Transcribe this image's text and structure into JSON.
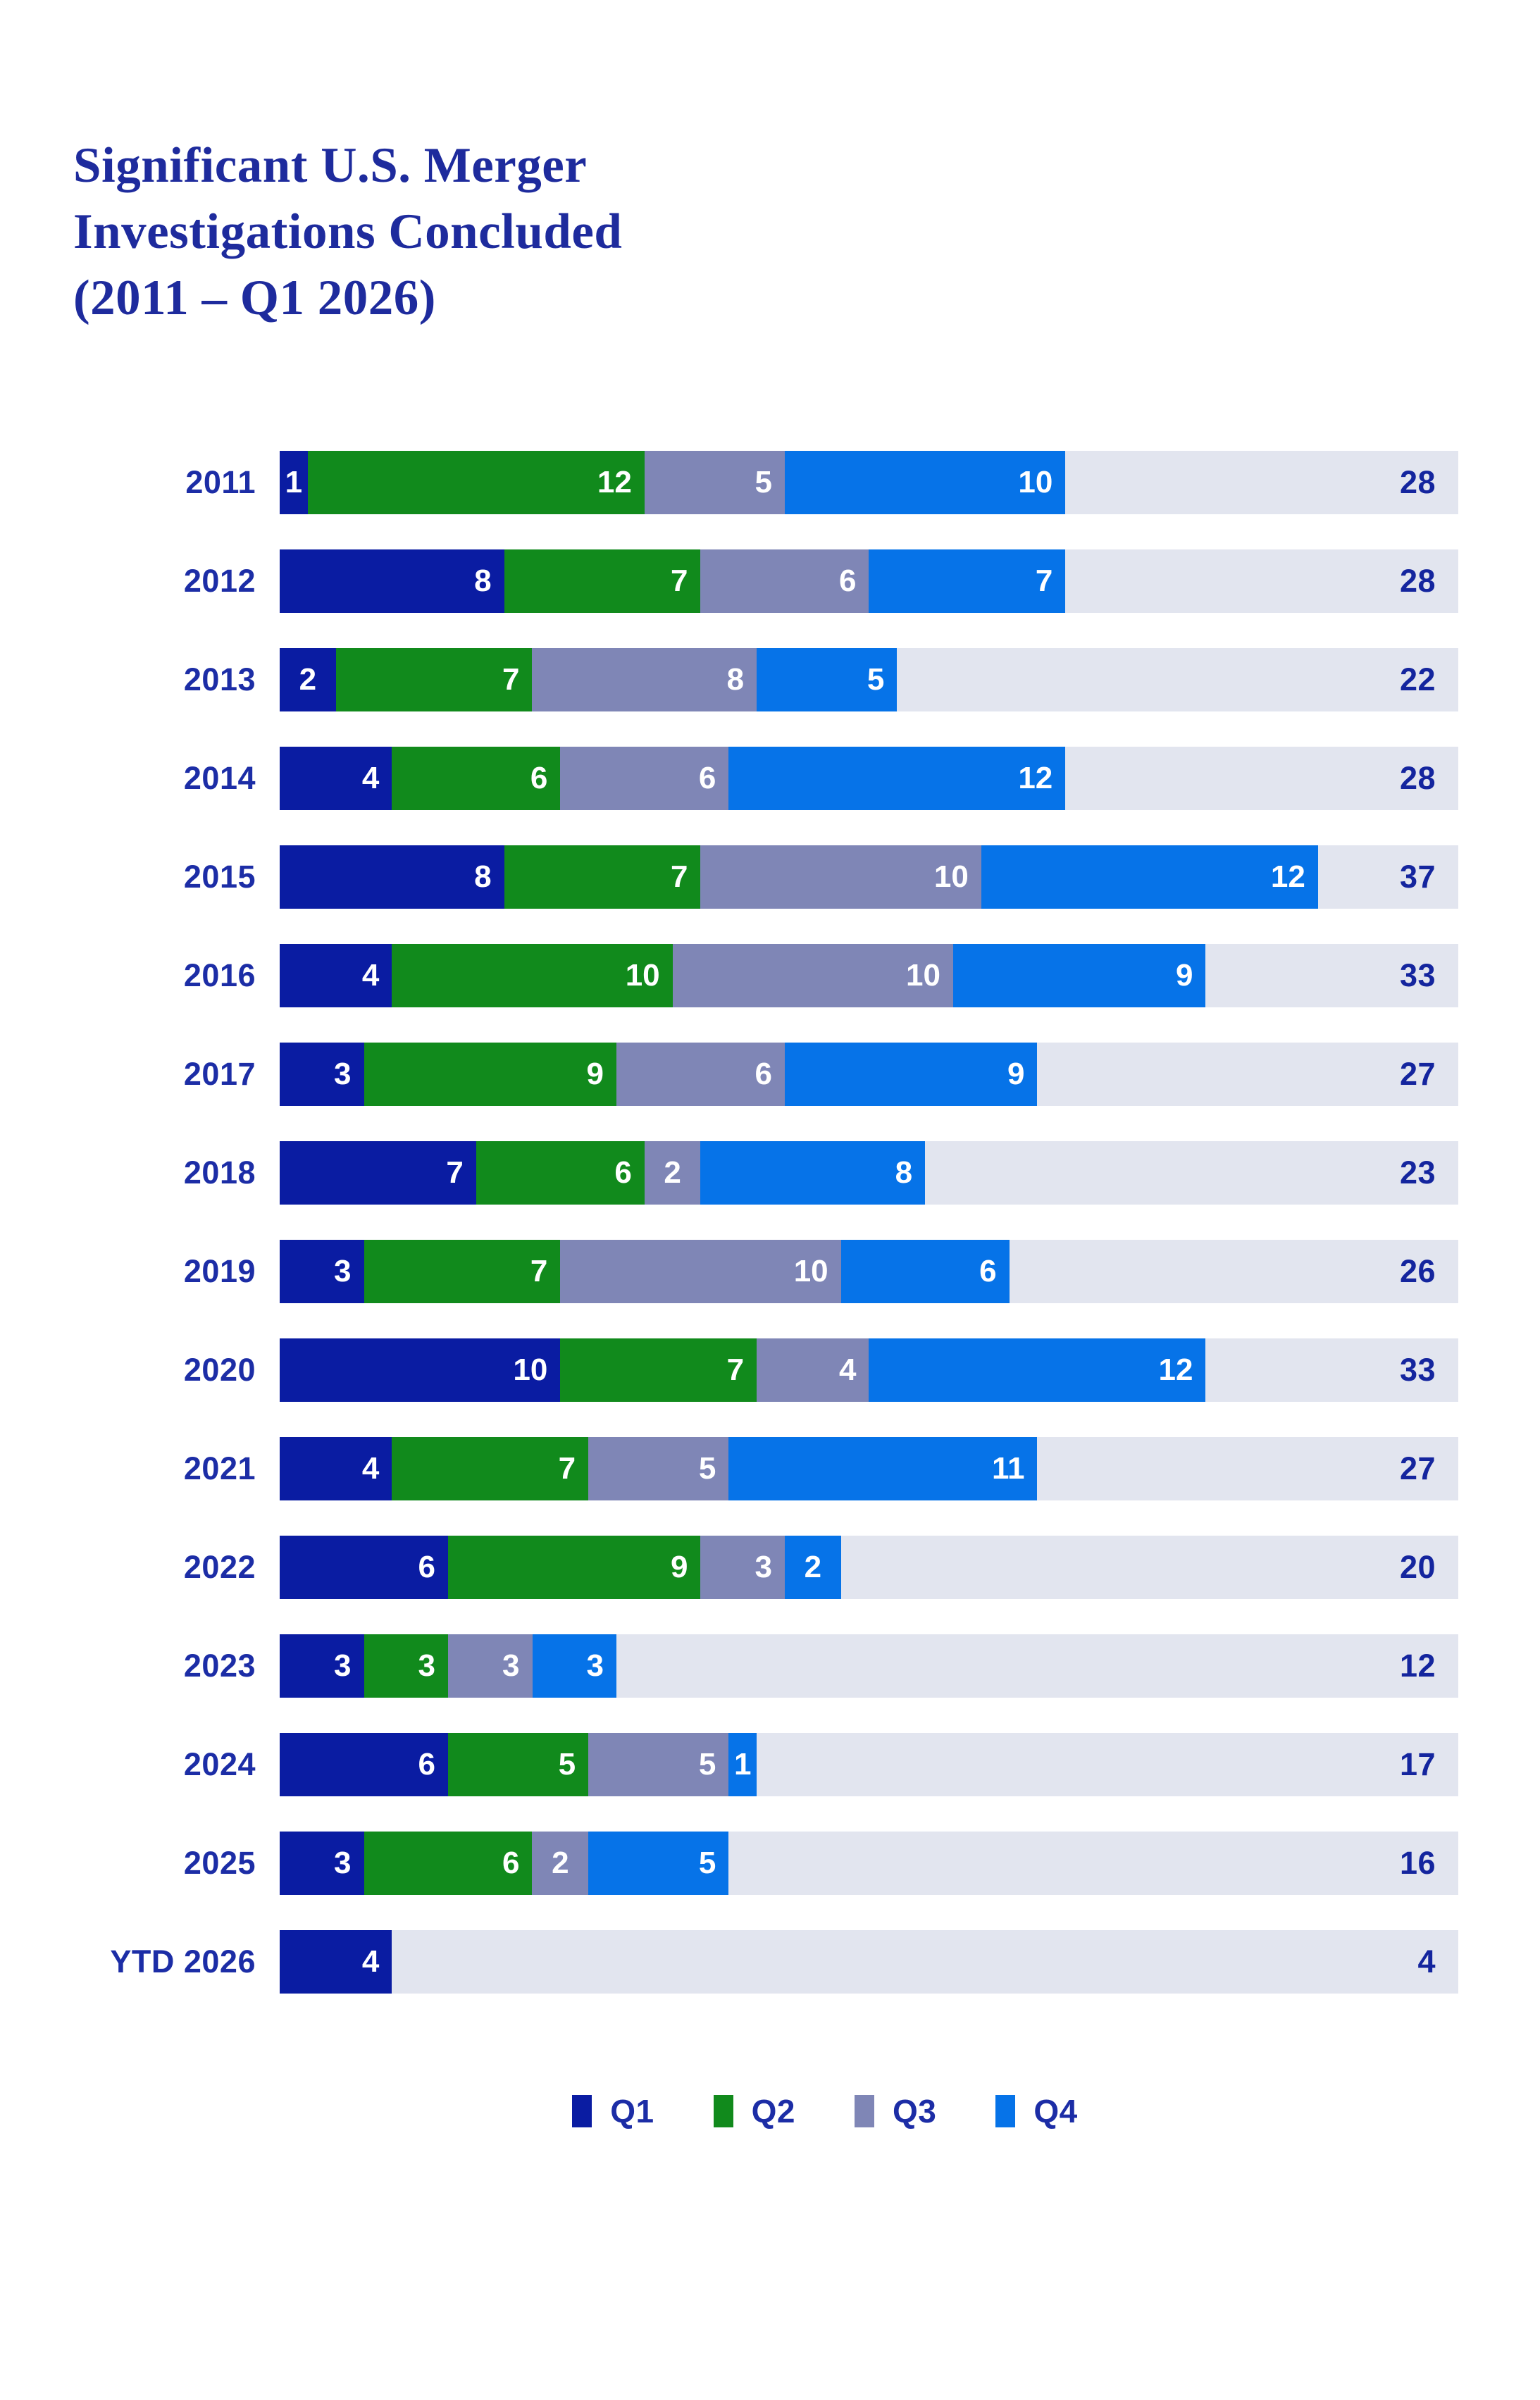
{
  "title": {
    "lines": [
      "Significant U.S. Merger",
      "Investigations Concluded",
      "(2011 – Q1 2026)"
    ]
  },
  "colors": {
    "q1": "#0A1CA2",
    "q2": "#118A1C",
    "q3": "#7F86B6",
    "q4": "#0673E8",
    "track": "#E2E5EF",
    "navy_text": "#1C2DA6",
    "title_text": "#1E2B9D"
  },
  "chart_data": {
    "type": "bar",
    "orientation": "horizontal",
    "stacked": true,
    "title": "Significant U.S. Merger Investigations Concluded (2011 – Q1 2026)",
    "axis_max": 42,
    "grid": false,
    "legend_position": "bottom",
    "categories": [
      "2011",
      "2012",
      "2013",
      "2014",
      "2015",
      "2016",
      "2017",
      "2018",
      "2019",
      "2020",
      "2021",
      "2022",
      "2023",
      "2024",
      "2025",
      "YTD 2026"
    ],
    "series": [
      {
        "name": "Q1",
        "color": "#0A1CA2",
        "values": [
          1,
          8,
          2,
          4,
          8,
          4,
          3,
          7,
          3,
          10,
          4,
          6,
          3,
          6,
          3,
          4
        ]
      },
      {
        "name": "Q2",
        "color": "#118A1C",
        "values": [
          12,
          7,
          7,
          6,
          7,
          10,
          9,
          6,
          7,
          7,
          7,
          9,
          3,
          5,
          6,
          0
        ]
      },
      {
        "name": "Q3",
        "color": "#7F86B6",
        "values": [
          5,
          6,
          8,
          6,
          10,
          10,
          6,
          2,
          10,
          4,
          5,
          3,
          3,
          5,
          2,
          0
        ]
      },
      {
        "name": "Q4",
        "color": "#0673E8",
        "values": [
          10,
          7,
          5,
          12,
          12,
          9,
          9,
          8,
          6,
          12,
          11,
          2,
          3,
          1,
          5,
          0
        ]
      }
    ],
    "totals": [
      28,
      28,
      22,
      28,
      37,
      33,
      27,
      23,
      26,
      33,
      27,
      20,
      12,
      17,
      16,
      4
    ],
    "legend": [
      "Q1",
      "Q2",
      "Q3",
      "Q4"
    ]
  }
}
